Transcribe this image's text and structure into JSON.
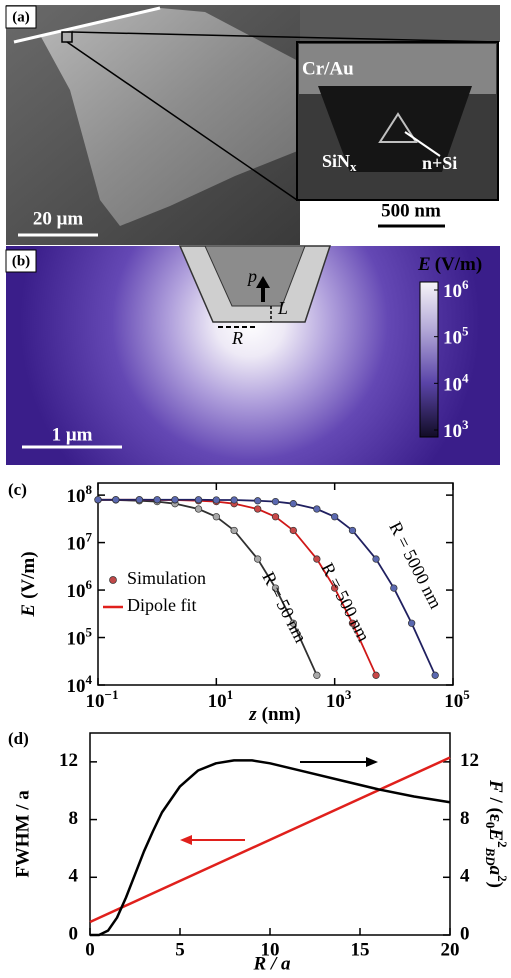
{
  "panel_a": {
    "panel_label": "(a)",
    "inset_top": "Cr/Au",
    "inset_left": [
      "SiN",
      "x"
    ],
    "inset_right": "n+Si",
    "scale_main": "20 μm",
    "scale_inset": "500 nm"
  },
  "panel_b": {
    "panel_label": "(b)",
    "dipole": "p",
    "length": "L",
    "radius": "R",
    "colorbar_label": [
      "E",
      "(V/m)"
    ],
    "clim": [
      1000,
      1000000
    ],
    "colorbar_ticks": [
      {
        "value": 1000000,
        "label": "10",
        "exp": "6"
      },
      {
        "value": 100000,
        "label": "10",
        "exp": "5"
      },
      {
        "value": 10000,
        "label": "10",
        "exp": "4"
      },
      {
        "value": 1000,
        "label": "10",
        "exp": "3"
      }
    ],
    "scale": "1 μm"
  },
  "chart_data": [
    {
      "type": "line",
      "panel_label": "(c)",
      "xlabel": [
        "z",
        "(nm)"
      ],
      "ylabel": [
        "E",
        "(V/m)"
      ],
      "log_x": true,
      "log_y": true,
      "markers": true,
      "xlim": [
        0.1,
        100000
      ],
      "ylim": [
        10000,
        180000000
      ],
      "xticks": [
        {
          "value": 0.1,
          "label": "10",
          "exp": "−1"
        },
        {
          "value": 10,
          "label": "10",
          "exp": "1"
        },
        {
          "value": 1000,
          "label": "10",
          "exp": "3"
        },
        {
          "value": 100000,
          "label": "10",
          "exp": "5"
        }
      ],
      "yticks": [
        {
          "value": 10000,
          "label": "10",
          "exp": "4"
        },
        {
          "value": 100000,
          "label": "10",
          "exp": "5"
        },
        {
          "value": 1000000,
          "label": "10",
          "exp": "6"
        },
        {
          "value": 10000000,
          "label": "10",
          "exp": "7"
        },
        {
          "value": 100000000,
          "label": "10",
          "exp": "8"
        }
      ],
      "legend": {
        "marker_label": "Simulation",
        "line_label": "Dipole fit",
        "marker_color": "#c04848",
        "line_color": "#e0201c",
        "position": "left"
      },
      "x": [
        0.1,
        0.2,
        0.5,
        1,
        2,
        5,
        10,
        20,
        50,
        100,
        200,
        500,
        1000,
        2000,
        5000,
        10000,
        20000,
        50000
      ],
      "series": [
        {
          "name": "R = 50 nm",
          "color": "#a8a8a8",
          "line_color": "#303030",
          "values": [
            79000000,
            79000000,
            76000000,
            73000000,
            66000000,
            51000000,
            35000000,
            18000000,
            4500000,
            1100000,
            200000,
            16000,
            null,
            null,
            null,
            null,
            null,
            null
          ]
        },
        {
          "name": "R = 500 nm",
          "color": "#c84848",
          "line_color": "#d01818",
          "values": [
            80000000,
            80000000,
            80000000,
            79000000,
            79000000,
            76000000,
            73000000,
            66000000,
            51000000,
            35000000,
            18000000,
            4500000,
            1100000,
            200000,
            16000,
            null,
            null,
            null
          ]
        },
        {
          "name": "R = 5000 nm",
          "color": "#5a68b0",
          "line_color": "#202060",
          "values": [
            80000000,
            80000000,
            80000000,
            80000000,
            80000000,
            80000000,
            79000000,
            79000000,
            76000000,
            73000000,
            66000000,
            51000000,
            35000000,
            18000000,
            4500000,
            1100000,
            200000,
            16000
          ]
        }
      ]
    },
    {
      "type": "line",
      "panel_label": "(d)",
      "xlabel": "R / a",
      "ylabel": "FWHM / a",
      "y2label_parts": [
        "F",
        " / (ε",
        "0",
        "E",
        "2",
        "BD",
        "a",
        "2",
        ")"
      ],
      "xlim": [
        0,
        20
      ],
      "xticks": [
        0,
        5,
        10,
        15,
        20
      ],
      "ylim": [
        0,
        14
      ],
      "yticks": [
        0,
        4,
        8,
        12
      ],
      "y2lim": [
        0,
        14
      ],
      "y2ticks": [
        0,
        4,
        8,
        12
      ],
      "series": [
        {
          "color": "#e0201c",
          "x": [
            0,
            20
          ],
          "values": [
            0.9,
            12.3
          ]
        },
        {
          "color": "#000000",
          "axis": "y2",
          "x": [
            0,
            0.5,
            1,
            1.5,
            2,
            2.5,
            3,
            3.5,
            4,
            5,
            6,
            7,
            8,
            9,
            10,
            12,
            14,
            16,
            18,
            20
          ],
          "values": [
            0,
            0,
            0.3,
            1.2,
            2.6,
            4.2,
            5.8,
            7.2,
            8.5,
            10.3,
            11.4,
            11.9,
            12.1,
            12.1,
            11.9,
            11.3,
            10.7,
            10.1,
            9.6,
            9.2
          ]
        }
      ]
    }
  ]
}
